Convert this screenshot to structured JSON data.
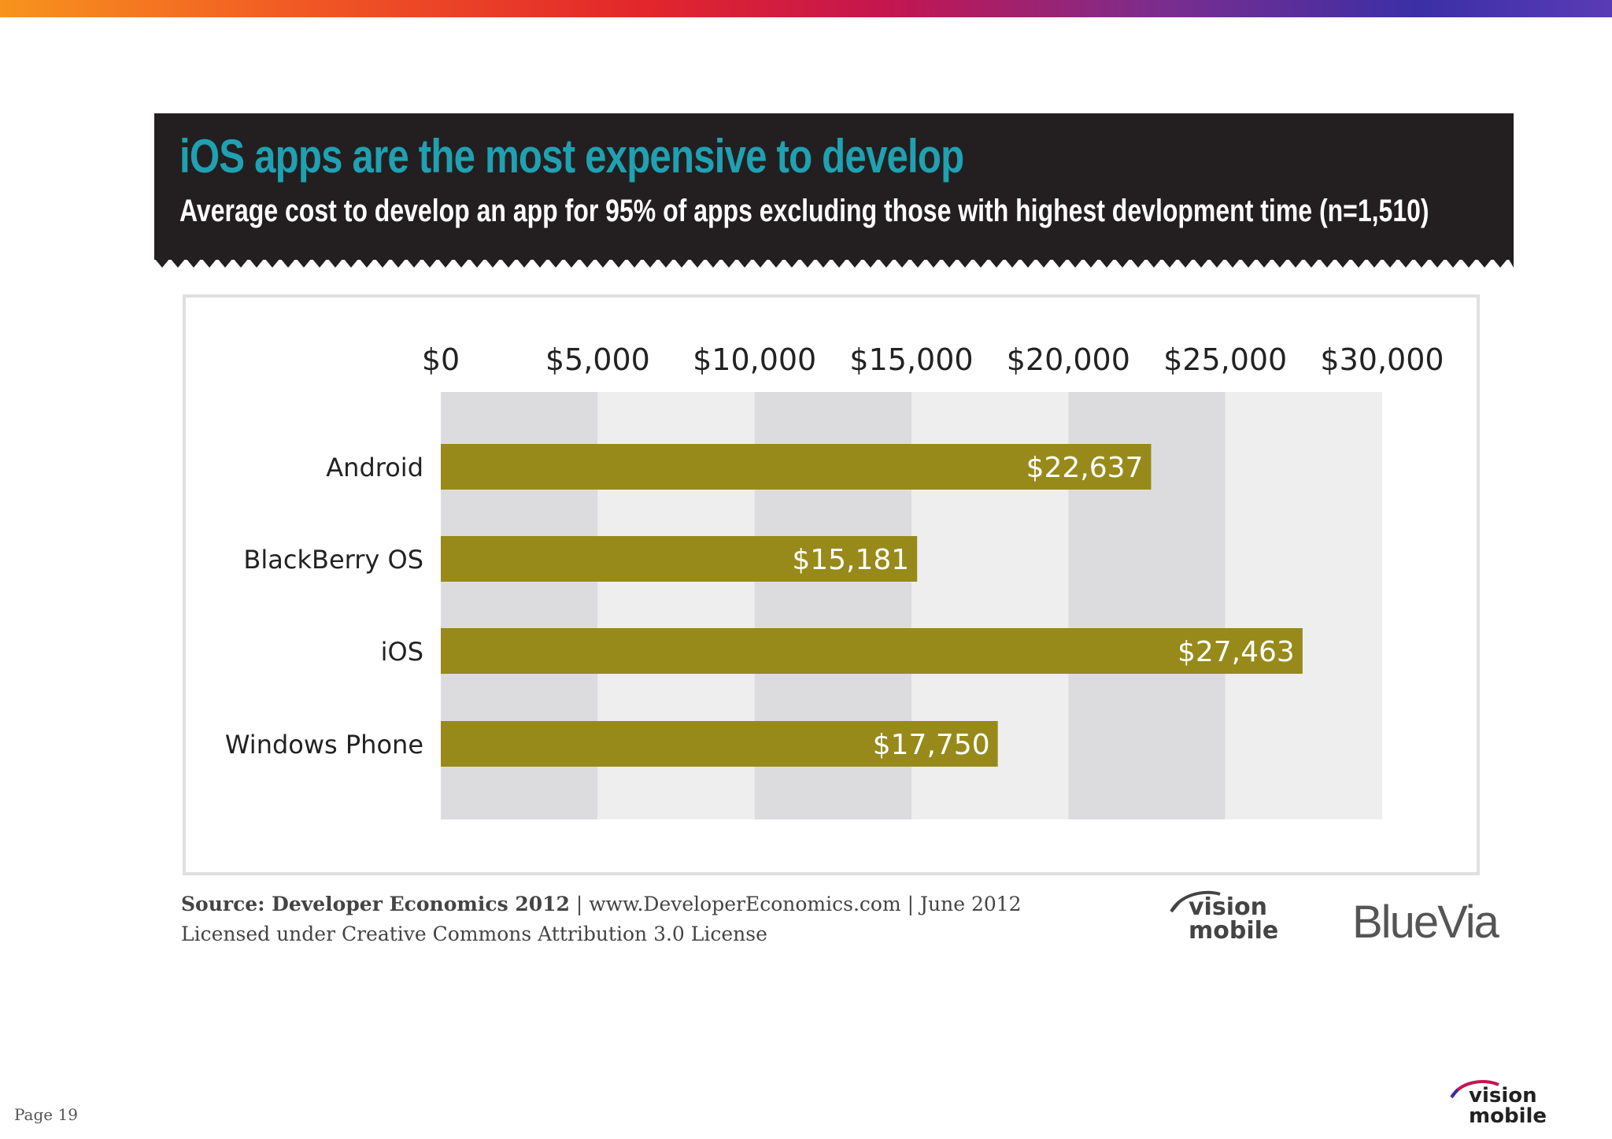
{
  "banner": {
    "title": "iOS apps are the most expensive to develop",
    "subtitle": "Average cost to develop an app for 95% of apps excluding those with highest devlopment time (n=1,510)"
  },
  "chart_data": {
    "type": "bar",
    "orientation": "horizontal",
    "categories": [
      "Android",
      "BlackBerry OS",
      "iOS",
      "Windows Phone"
    ],
    "values": [
      22637,
      15181,
      27463,
      17750
    ],
    "value_labels": [
      "$22,637",
      "$15,181",
      "$27,463",
      "$17,750"
    ],
    "tick_values": [
      0,
      5000,
      10000,
      15000,
      20000,
      25000,
      30000
    ],
    "tick_labels": [
      "$0",
      "$5,000",
      "$10,000",
      "$15,000",
      "$20,000",
      "$25,000",
      "$30,000"
    ],
    "xlim": [
      0,
      30000
    ],
    "axis_position": "top",
    "title": "",
    "xlabel": "",
    "ylabel": "",
    "colors": {
      "bar": "#978a1b",
      "band_dark": "#dcdcde",
      "band_light": "#eeeeef",
      "label_text": "#ffffff",
      "axis_text": "#222222"
    }
  },
  "footer": {
    "source_label": "Source: Developer Economics 2012",
    "source_rest": " | www.DeveloperEconomics.com | June 2012",
    "license": "Licensed under Creative Commons Attribution 3.0 License"
  },
  "logos": {
    "vision_line1": "vision",
    "vision_line2": "mobile",
    "bluevia": "BlueVia"
  },
  "page": {
    "label": "Page 19"
  }
}
